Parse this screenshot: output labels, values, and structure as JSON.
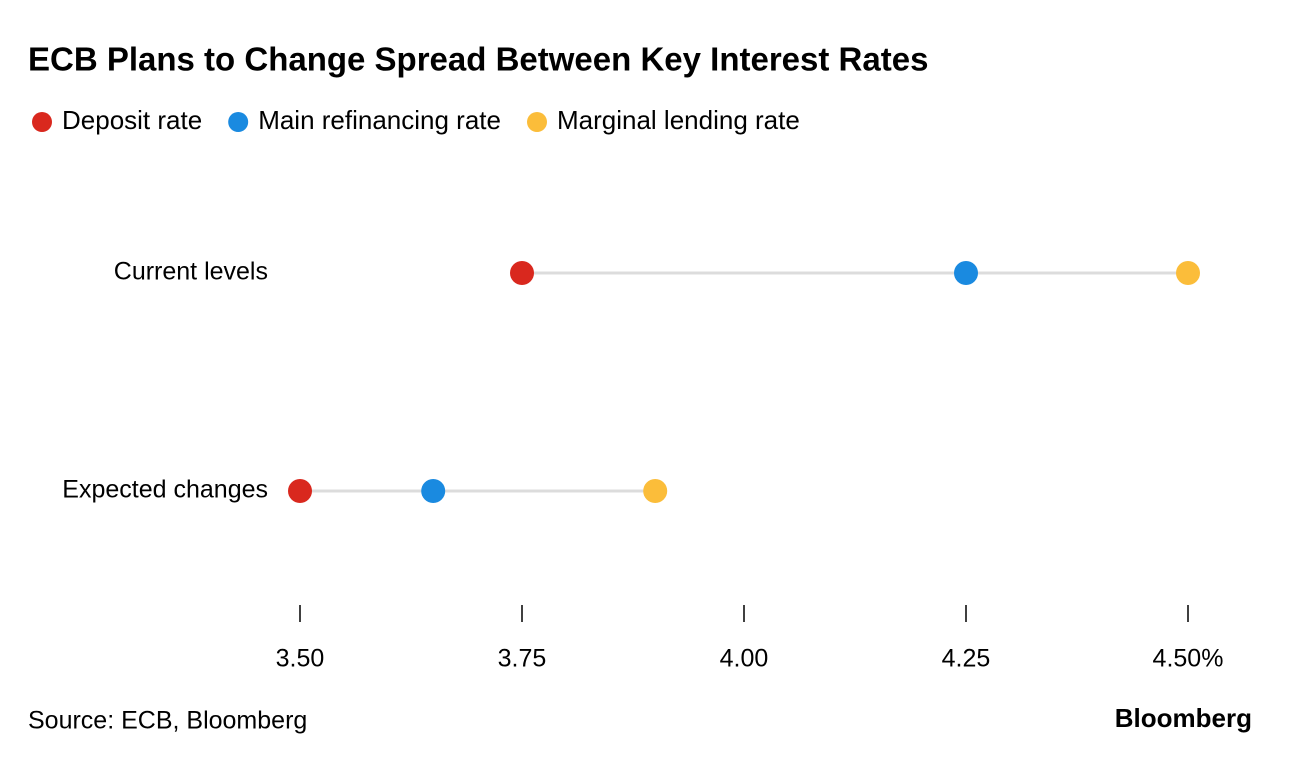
{
  "chart_data": {
    "type": "dot",
    "title": "ECB Plans to Change Spread Between Key Interest Rates",
    "categories": [
      "Current levels",
      "Expected changes"
    ],
    "series": [
      {
        "name": "Deposit rate",
        "color": "#d9281e",
        "values": [
          3.75,
          3.5
        ]
      },
      {
        "name": "Main refinancing rate",
        "color": "#1a8ae0",
        "values": [
          4.25,
          3.65
        ]
      },
      {
        "name": "Marginal lending rate",
        "color": "#fbbd3a",
        "values": [
          4.5,
          3.9
        ]
      }
    ],
    "xlim": [
      3.5,
      4.5
    ],
    "xticks": [
      {
        "value": 3.5,
        "label": "3.50"
      },
      3.75,
      {
        "value": 4,
        "label": "4.00"
      },
      4.25,
      {
        "value": 4.5,
        "label": "4.50%"
      }
    ],
    "source": "Source: ECB, Bloomberg",
    "logo": "Bloomberg"
  }
}
